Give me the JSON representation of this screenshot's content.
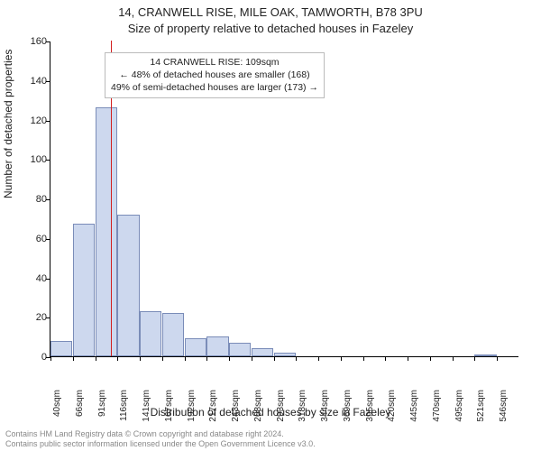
{
  "title_line1": "14, CRANWELL RISE, MILE OAK, TAMWORTH, B78 3PU",
  "title_line2": "Size of property relative to detached houses in Fazeley",
  "ylabel": "Number of detached properties",
  "xlabel": "Distribution of detached houses by size in Fazeley",
  "chart": {
    "type": "histogram",
    "ylim": [
      0,
      160
    ],
    "ytick_step": 20,
    "bar_fill": "#cdd8ee",
    "bar_stroke": "#7a8cb8",
    "background": "#ffffff",
    "marker_color": "#d21f1f",
    "marker_value_x": 109,
    "bin_width": 25.4,
    "x_start": 40,
    "categories": [
      "40sqm",
      "66sqm",
      "91sqm",
      "116sqm",
      "141sqm",
      "167sqm",
      "192sqm",
      "217sqm",
      "243sqm",
      "268sqm",
      "293sqm",
      "318sqm",
      "344sqm",
      "369sqm",
      "395sqm",
      "420sqm",
      "445sqm",
      "470sqm",
      "495sqm",
      "521sqm",
      "546sqm"
    ],
    "values": [
      8,
      67,
      126,
      72,
      23,
      22,
      9,
      10,
      7,
      4,
      2,
      0,
      0,
      0,
      0,
      0,
      0,
      0,
      0,
      1
    ]
  },
  "annotation": {
    "line1": "14 CRANWELL RISE: 109sqm",
    "line2": "← 48% of detached houses are smaller (168)",
    "line3": "49% of semi-detached houses are larger (173) →"
  },
  "footer": {
    "line1": "Contains HM Land Registry data © Crown copyright and database right 2024.",
    "line2": "Contains public sector information licensed under the Open Government Licence v3.0."
  }
}
